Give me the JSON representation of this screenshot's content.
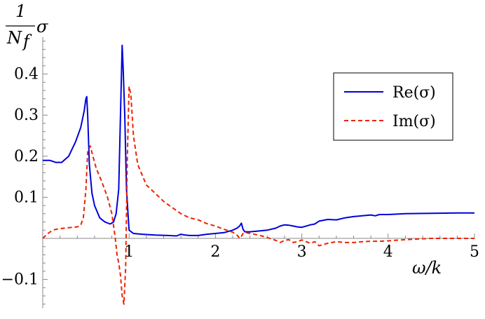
{
  "chart_data": {
    "type": "line",
    "title": "",
    "ylabel_top": "1",
    "ylabel_bottom": "N",
    "ylabel_sub": "f",
    "ylabel_sigma": "σ",
    "xlabel": "ω/k",
    "xlim": [
      0,
      5
    ],
    "ylim": [
      -0.17,
      0.49
    ],
    "x_ticks": [
      1,
      2,
      3,
      4,
      5
    ],
    "x_tick_labels": [
      "1",
      "2",
      "3",
      "4",
      "5"
    ],
    "y_ticks": [
      -0.1,
      0.1,
      0.2,
      0.3,
      0.4
    ],
    "y_tick_labels": [
      "−0.1",
      "0.1",
      "0.2",
      "0.3",
      "0.4"
    ],
    "grid": false,
    "legend_position": "right",
    "series": [
      {
        "name": "Re(σ)",
        "color": "#0000dd",
        "dash": "solid",
        "x": [
          0,
          0.08,
          0.15,
          0.22,
          0.3,
          0.38,
          0.44,
          0.48,
          0.5,
          0.51,
          0.52,
          0.54,
          0.57,
          0.6,
          0.66,
          0.72,
          0.78,
          0.82,
          0.85,
          0.88,
          0.9,
          0.92,
          0.93,
          0.95,
          0.97,
          0.99,
          1.0,
          1.05,
          1.15,
          1.3,
          1.45,
          1.55,
          1.6,
          1.65,
          1.7,
          1.8,
          1.9,
          2.0,
          2.1,
          2.2,
          2.25,
          2.28,
          2.3,
          2.32,
          2.34,
          2.4,
          2.5,
          2.6,
          2.7,
          2.75,
          2.8,
          2.85,
          2.9,
          2.95,
          3.0,
          3.05,
          3.1,
          3.15,
          3.2,
          3.3,
          3.4,
          3.5,
          3.6,
          3.7,
          3.8,
          3.85,
          3.9,
          4.0,
          4.2,
          4.5,
          4.8,
          5.0
        ],
        "y": [
          0.19,
          0.19,
          0.185,
          0.185,
          0.2,
          0.235,
          0.27,
          0.31,
          0.34,
          0.345,
          0.3,
          0.18,
          0.11,
          0.08,
          0.05,
          0.04,
          0.035,
          0.04,
          0.06,
          0.12,
          0.3,
          0.47,
          0.42,
          0.3,
          0.12,
          0.05,
          0.02,
          0.012,
          0.01,
          0.008,
          0.007,
          0.006,
          0.01,
          0.008,
          0.007,
          0.007,
          0.01,
          0.012,
          0.014,
          0.02,
          0.025,
          0.03,
          0.037,
          0.022,
          0.016,
          0.016,
          0.018,
          0.02,
          0.025,
          0.03,
          0.033,
          0.032,
          0.03,
          0.028,
          0.027,
          0.03,
          0.033,
          0.035,
          0.042,
          0.046,
          0.045,
          0.05,
          0.053,
          0.055,
          0.057,
          0.055,
          0.058,
          0.058,
          0.06,
          0.061,
          0.062,
          0.062
        ]
      },
      {
        "name": "Im(σ)",
        "color": "#ee2200",
        "dash": "dashed",
        "x": [
          0,
          0.05,
          0.1,
          0.15,
          0.22,
          0.3,
          0.4,
          0.44,
          0.47,
          0.5,
          0.52,
          0.55,
          0.58,
          0.62,
          0.68,
          0.75,
          0.8,
          0.84,
          0.86,
          0.88,
          0.9,
          0.92,
          0.94,
          0.96,
          0.98,
          1.0,
          1.02,
          1.05,
          1.1,
          1.2,
          1.3,
          1.4,
          1.5,
          1.6,
          1.7,
          1.8,
          1.9,
          2.0,
          2.1,
          2.2,
          2.25,
          2.28,
          2.3,
          2.32,
          2.35,
          2.4,
          2.5,
          2.6,
          2.7,
          2.75,
          2.8,
          2.85,
          2.9,
          2.95,
          3.0,
          3.1,
          3.15,
          3.2,
          3.3,
          3.4,
          3.5,
          3.6,
          3.7,
          3.8,
          3.9,
          4.0,
          4.2,
          4.5,
          4.8,
          5.0
        ],
        "y": [
          0,
          0.01,
          0.018,
          0.022,
          0.024,
          0.026,
          0.028,
          0.032,
          0.05,
          0.12,
          0.21,
          0.225,
          0.2,
          0.17,
          0.14,
          0.1,
          0.06,
          0.0,
          -0.04,
          -0.06,
          -0.09,
          -0.14,
          -0.16,
          -0.07,
          0.2,
          0.37,
          0.35,
          0.25,
          0.18,
          0.13,
          0.11,
          0.09,
          0.075,
          0.06,
          0.05,
          0.045,
          0.036,
          0.03,
          0.022,
          0.015,
          0.008,
          0.0,
          0.005,
          0.012,
          0.014,
          0.012,
          0.008,
          0.002,
          -0.005,
          -0.01,
          -0.005,
          -0.003,
          -0.01,
          -0.008,
          -0.004,
          -0.012,
          -0.008,
          -0.018,
          -0.012,
          -0.008,
          -0.01,
          -0.01,
          -0.008,
          -0.007,
          -0.007,
          -0.006,
          -0.003,
          0.0,
          0.0,
          0.0
        ]
      }
    ]
  }
}
